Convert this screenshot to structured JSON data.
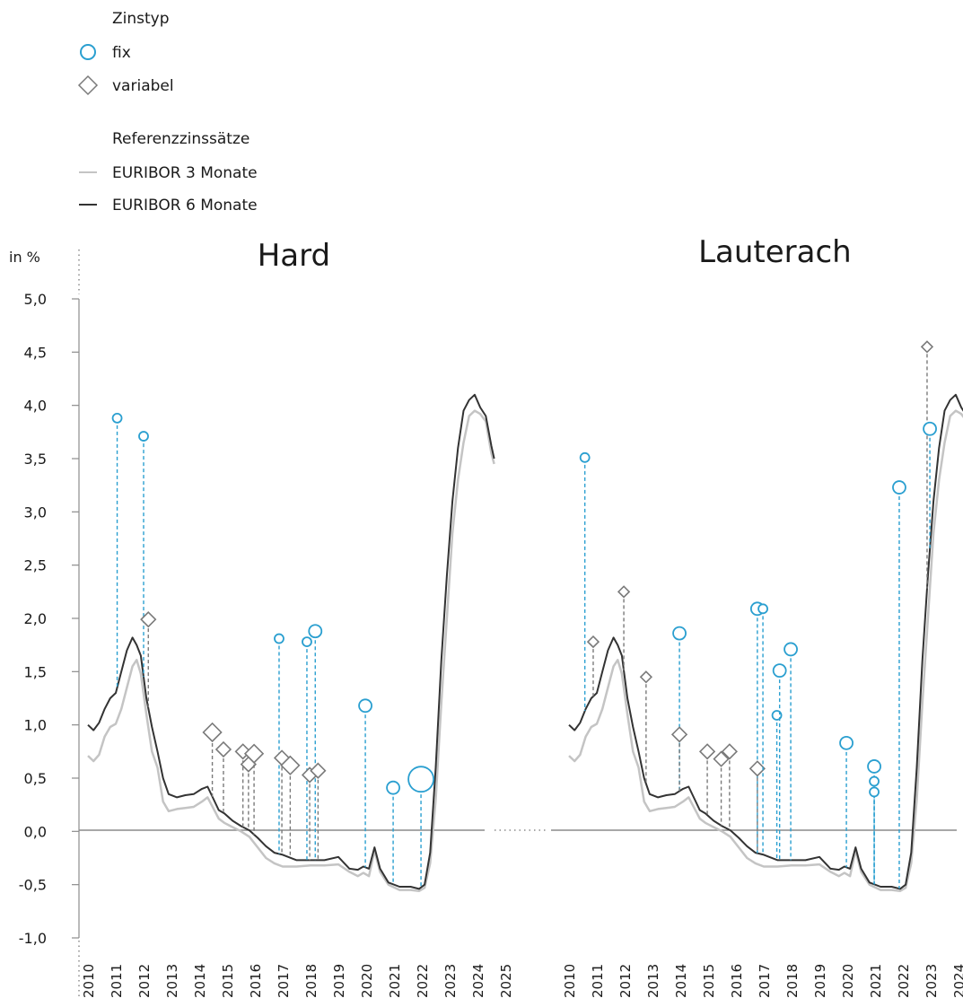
{
  "legend": {
    "type_title": "Zinstyp",
    "fix_label": "fix",
    "variable_label": "variabel",
    "ref_title": "Referenzzinssätze",
    "e3_label": "EURIBOR 3 Monate",
    "e6_label": "EURIBOR 6 Monate"
  },
  "colors": {
    "fix": "#2a9fd0",
    "variable": "#7a7a7a",
    "euribor3": "#c4c4c4",
    "euribor6": "#333333",
    "axis": "#8c8c8c"
  },
  "chart_data": {
    "type": "scatter",
    "ylabel": "in %",
    "ylim": [
      -1.0,
      5.0
    ],
    "xlim": [
      2010,
      2025
    ],
    "yticks": [
      "5,0",
      "4,5",
      "4,0",
      "3,5",
      "3,0",
      "2,5",
      "2,0",
      "1,5",
      "1,0",
      "0,5",
      "0,0",
      "-0,5",
      "-1,0"
    ],
    "xticks": [
      "2010",
      "2011",
      "2012",
      "2013",
      "2014",
      "2015",
      "2016",
      "2017",
      "2018",
      "2019",
      "2020",
      "2021",
      "2022",
      "2023",
      "2024",
      "2025"
    ],
    "euribor3": [
      [
        2010.0,
        0.71
      ],
      [
        2010.2,
        0.66
      ],
      [
        2010.4,
        0.72
      ],
      [
        2010.6,
        0.89
      ],
      [
        2010.8,
        0.98
      ],
      [
        2011.0,
        1.01
      ],
      [
        2011.2,
        1.15
      ],
      [
        2011.4,
        1.35
      ],
      [
        2011.6,
        1.55
      ],
      [
        2011.75,
        1.61
      ],
      [
        2011.9,
        1.48
      ],
      [
        2012.1,
        1.1
      ],
      [
        2012.3,
        0.75
      ],
      [
        2012.5,
        0.6
      ],
      [
        2012.7,
        0.28
      ],
      [
        2012.9,
        0.19
      ],
      [
        2013.2,
        0.21
      ],
      [
        2013.5,
        0.22
      ],
      [
        2013.8,
        0.23
      ],
      [
        2014.1,
        0.28
      ],
      [
        2014.3,
        0.32
      ],
      [
        2014.5,
        0.22
      ],
      [
        2014.7,
        0.12
      ],
      [
        2014.9,
        0.08
      ],
      [
        2015.2,
        0.04
      ],
      [
        2015.5,
        0.0
      ],
      [
        2015.8,
        -0.05
      ],
      [
        2016.1,
        -0.15
      ],
      [
        2016.4,
        -0.25
      ],
      [
        2016.7,
        -0.3
      ],
      [
        2017.0,
        -0.33
      ],
      [
        2017.5,
        -0.33
      ],
      [
        2018.0,
        -0.32
      ],
      [
        2018.5,
        -0.32
      ],
      [
        2019.0,
        -0.31
      ],
      [
        2019.4,
        -0.38
      ],
      [
        2019.7,
        -0.42
      ],
      [
        2019.9,
        -0.39
      ],
      [
        2020.1,
        -0.42
      ],
      [
        2020.3,
        -0.18
      ],
      [
        2020.5,
        -0.38
      ],
      [
        2020.8,
        -0.5
      ],
      [
        2021.2,
        -0.55
      ],
      [
        2021.6,
        -0.55
      ],
      [
        2021.9,
        -0.56
      ],
      [
        2022.1,
        -0.53
      ],
      [
        2022.3,
        -0.3
      ],
      [
        2022.5,
        0.3
      ],
      [
        2022.7,
        1.2
      ],
      [
        2022.9,
        2.0
      ],
      [
        2023.1,
        2.8
      ],
      [
        2023.3,
        3.3
      ],
      [
        2023.5,
        3.65
      ],
      [
        2023.7,
        3.9
      ],
      [
        2023.9,
        3.95
      ],
      [
        2024.1,
        3.92
      ],
      [
        2024.3,
        3.85
      ],
      [
        2024.5,
        3.55
      ],
      [
        2024.6,
        3.45
      ]
    ],
    "euribor6": [
      [
        2010.0,
        1.0
      ],
      [
        2010.2,
        0.95
      ],
      [
        2010.4,
        1.02
      ],
      [
        2010.6,
        1.15
      ],
      [
        2010.8,
        1.25
      ],
      [
        2011.0,
        1.3
      ],
      [
        2011.2,
        1.5
      ],
      [
        2011.4,
        1.7
      ],
      [
        2011.6,
        1.82
      ],
      [
        2011.75,
        1.75
      ],
      [
        2011.9,
        1.65
      ],
      [
        2012.1,
        1.25
      ],
      [
        2012.3,
        0.98
      ],
      [
        2012.5,
        0.75
      ],
      [
        2012.7,
        0.5
      ],
      [
        2012.9,
        0.35
      ],
      [
        2013.2,
        0.32
      ],
      [
        2013.5,
        0.34
      ],
      [
        2013.8,
        0.35
      ],
      [
        2014.1,
        0.4
      ],
      [
        2014.3,
        0.42
      ],
      [
        2014.5,
        0.31
      ],
      [
        2014.7,
        0.2
      ],
      [
        2014.9,
        0.17
      ],
      [
        2015.2,
        0.1
      ],
      [
        2015.5,
        0.05
      ],
      [
        2015.8,
        0.01
      ],
      [
        2016.1,
        -0.06
      ],
      [
        2016.4,
        -0.14
      ],
      [
        2016.7,
        -0.2
      ],
      [
        2017.0,
        -0.22
      ],
      [
        2017.5,
        -0.27
      ],
      [
        2018.0,
        -0.27
      ],
      [
        2018.5,
        -0.27
      ],
      [
        2019.0,
        -0.24
      ],
      [
        2019.4,
        -0.35
      ],
      [
        2019.7,
        -0.36
      ],
      [
        2019.9,
        -0.33
      ],
      [
        2020.1,
        -0.35
      ],
      [
        2020.3,
        -0.15
      ],
      [
        2020.5,
        -0.35
      ],
      [
        2020.8,
        -0.48
      ],
      [
        2021.2,
        -0.52
      ],
      [
        2021.6,
        -0.52
      ],
      [
        2021.9,
        -0.54
      ],
      [
        2022.1,
        -0.5
      ],
      [
        2022.3,
        -0.2
      ],
      [
        2022.5,
        0.6
      ],
      [
        2022.7,
        1.6
      ],
      [
        2022.9,
        2.4
      ],
      [
        2023.1,
        3.1
      ],
      [
        2023.3,
        3.6
      ],
      [
        2023.5,
        3.95
      ],
      [
        2023.7,
        4.05
      ],
      [
        2023.9,
        4.1
      ],
      [
        2024.1,
        3.98
      ],
      [
        2024.3,
        3.9
      ],
      [
        2024.5,
        3.62
      ],
      [
        2024.6,
        3.5
      ]
    ],
    "panels": [
      {
        "title": "Hard",
        "points": [
          {
            "x": 2011.05,
            "y": 3.88,
            "kind": "fix",
            "size": 1
          },
          {
            "x": 2012.0,
            "y": 3.71,
            "kind": "fix",
            "size": 1
          },
          {
            "x": 2012.17,
            "y": 1.99,
            "kind": "variabel",
            "size": 2
          },
          {
            "x": 2014.47,
            "y": 0.93,
            "kind": "variabel",
            "size": 3
          },
          {
            "x": 2014.87,
            "y": 0.77,
            "kind": "variabel",
            "size": 2
          },
          {
            "x": 2015.57,
            "y": 0.75,
            "kind": "variabel",
            "size": 2
          },
          {
            "x": 2015.77,
            "y": 0.63,
            "kind": "variabel",
            "size": 2
          },
          {
            "x": 2015.97,
            "y": 0.73,
            "kind": "variabel",
            "size": 3
          },
          {
            "x": 2016.87,
            "y": 1.81,
            "kind": "fix",
            "size": 1
          },
          {
            "x": 2016.97,
            "y": 0.69,
            "kind": "variabel",
            "size": 2
          },
          {
            "x": 2017.27,
            "y": 0.62,
            "kind": "variabel",
            "size": 3
          },
          {
            "x": 2017.87,
            "y": 1.78,
            "kind": "fix",
            "size": 1
          },
          {
            "x": 2017.97,
            "y": 0.53,
            "kind": "variabel",
            "size": 2
          },
          {
            "x": 2018.17,
            "y": 1.88,
            "kind": "fix",
            "size": 2
          },
          {
            "x": 2018.27,
            "y": 0.57,
            "kind": "variabel",
            "size": 2
          },
          {
            "x": 2019.97,
            "y": 1.18,
            "kind": "fix",
            "size": 2
          },
          {
            "x": 2020.97,
            "y": 0.41,
            "kind": "fix",
            "size": 2
          },
          {
            "x": 2021.97,
            "y": 0.49,
            "kind": "fix",
            "size": 4
          }
        ]
      },
      {
        "title": "Lauterach",
        "points": [
          {
            "x": 2010.57,
            "y": 3.51,
            "kind": "fix",
            "size": 1
          },
          {
            "x": 2010.87,
            "y": 1.78,
            "kind": "variabel",
            "size": 1
          },
          {
            "x": 2011.97,
            "y": 2.25,
            "kind": "variabel",
            "size": 1
          },
          {
            "x": 2012.77,
            "y": 1.45,
            "kind": "variabel",
            "size": 1
          },
          {
            "x": 2013.97,
            "y": 1.86,
            "kind": "fix",
            "size": 2
          },
          {
            "x": 2013.97,
            "y": 0.91,
            "kind": "variabel",
            "size": 2
          },
          {
            "x": 2014.97,
            "y": 0.75,
            "kind": "variabel",
            "size": 2
          },
          {
            "x": 2015.47,
            "y": 0.68,
            "kind": "variabel",
            "size": 2
          },
          {
            "x": 2015.77,
            "y": 0.75,
            "kind": "variabel",
            "size": 2
          },
          {
            "x": 2016.77,
            "y": 2.09,
            "kind": "fix",
            "size": 2
          },
          {
            "x": 2016.77,
            "y": 0.59,
            "kind": "variabel",
            "size": 2
          },
          {
            "x": 2016.97,
            "y": 2.09,
            "kind": "fix",
            "size": 1
          },
          {
            "x": 2017.47,
            "y": 1.09,
            "kind": "fix",
            "size": 1
          },
          {
            "x": 2017.57,
            "y": 1.51,
            "kind": "fix",
            "size": 2
          },
          {
            "x": 2017.97,
            "y": 1.71,
            "kind": "fix",
            "size": 2
          },
          {
            "x": 2019.97,
            "y": 0.83,
            "kind": "fix",
            "size": 2
          },
          {
            "x": 2020.97,
            "y": 0.61,
            "kind": "fix",
            "size": 2
          },
          {
            "x": 2020.97,
            "y": 0.47,
            "kind": "fix",
            "size": 1
          },
          {
            "x": 2020.97,
            "y": 0.37,
            "kind": "fix",
            "size": 1
          },
          {
            "x": 2021.87,
            "y": 3.23,
            "kind": "fix",
            "size": 2
          },
          {
            "x": 2022.87,
            "y": 4.55,
            "kind": "variabel",
            "size": 1
          },
          {
            "x": 2022.97,
            "y": 3.78,
            "kind": "fix",
            "size": 2
          }
        ]
      }
    ]
  }
}
